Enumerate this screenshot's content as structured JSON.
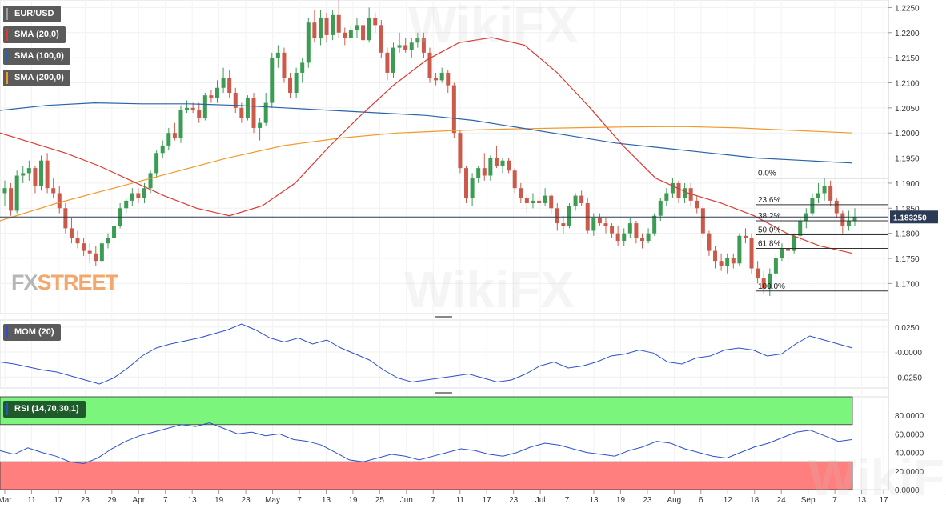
{
  "legend": {
    "symbol": "EUR/USD",
    "sma20": "SMA (20,0)",
    "sma100": "SMA (100,0)",
    "sma200": "SMA (200,0)",
    "mom": "MOM (20)",
    "rsi": "RSI (14,70,30,1)"
  },
  "logo": {
    "part1": "FX",
    "part2": "STREET"
  },
  "watermark": "WikiFX",
  "colors": {
    "bull": "#3c9c54",
    "bear": "#cc5a4a",
    "sma20": "#d93b33",
    "sma100": "#2a64a8",
    "sma200": "#f09a2a",
    "mom": "#2e4fc9",
    "rsi": "#2e4fc9",
    "rsi_overbought_zone": "#7bf57b",
    "rsi_oversold_zone": "#ff7f7f",
    "price_line": "#2b3a55",
    "price_badge": "#2b3a55"
  },
  "current_price": "1.183250",
  "chart_data": {
    "type": "candlestick",
    "price_axis": {
      "ylim": [
        1.164,
        1.2265
      ],
      "ticks": [
        "1.2250",
        "1.2200",
        "1.2150",
        "1.2100",
        "1.2050",
        "1.2000",
        "1.1950",
        "1.1900",
        "1.1850",
        "1.1800",
        "1.1750",
        "1.1700"
      ]
    },
    "x_ticks": [
      "Mar",
      "11",
      "17",
      "23",
      "29",
      "Apr",
      "7",
      "13",
      "19",
      "23",
      "May",
      "7",
      "13",
      "19",
      "25",
      "Jun",
      "7",
      "11",
      "17",
      "23",
      "Jul",
      "7",
      "13",
      "19",
      "23",
      "Aug",
      "6",
      "12",
      "18",
      "24",
      "Sep",
      "7",
      "13",
      "17"
    ],
    "candles_ohlc": [
      [
        1.188,
        1.1905,
        1.1855,
        1.189
      ],
      [
        1.189,
        1.19,
        1.1835,
        1.1845
      ],
      [
        1.1845,
        1.1925,
        1.184,
        1.1915
      ],
      [
        1.1915,
        1.1935,
        1.19,
        1.192
      ],
      [
        1.192,
        1.1945,
        1.1905,
        1.193
      ],
      [
        1.193,
        1.1935,
        1.188,
        1.1895
      ],
      [
        1.1895,
        1.1955,
        1.1885,
        1.1945
      ],
      [
        1.1945,
        1.196,
        1.188,
        1.189
      ],
      [
        1.189,
        1.191,
        1.187,
        1.188
      ],
      [
        1.188,
        1.1895,
        1.184,
        1.185
      ],
      [
        1.185,
        1.186,
        1.18,
        1.181
      ],
      [
        1.181,
        1.183,
        1.178,
        1.179
      ],
      [
        1.179,
        1.1805,
        1.177,
        1.178
      ],
      [
        1.178,
        1.179,
        1.1755,
        1.1765
      ],
      [
        1.1765,
        1.178,
        1.174,
        1.176
      ],
      [
        1.176,
        1.1775,
        1.1735,
        1.1745
      ],
      [
        1.1745,
        1.1785,
        1.174,
        1.178
      ],
      [
        1.178,
        1.18,
        1.177,
        1.179
      ],
      [
        1.179,
        1.182,
        1.178,
        1.1815
      ],
      [
        1.1815,
        1.186,
        1.181,
        1.185
      ],
      [
        1.185,
        1.187,
        1.184,
        1.1865
      ],
      [
        1.1865,
        1.189,
        1.1855,
        1.188
      ],
      [
        1.188,
        1.189,
        1.186,
        1.187
      ],
      [
        1.187,
        1.19,
        1.186,
        1.189
      ],
      [
        1.189,
        1.1925,
        1.188,
        1.192
      ],
      [
        1.192,
        1.1965,
        1.191,
        1.196
      ],
      [
        1.196,
        1.1985,
        1.195,
        1.1975
      ],
      [
        1.1975,
        1.201,
        1.1965,
        1.2
      ],
      [
        1.2,
        1.202,
        1.1985,
        1.199
      ],
      [
        1.199,
        1.2055,
        1.198,
        1.2045
      ],
      [
        1.2045,
        1.2065,
        1.204,
        1.205
      ],
      [
        1.205,
        1.206,
        1.204,
        1.2045
      ],
      [
        1.2045,
        1.206,
        1.202,
        1.203
      ],
      [
        1.203,
        1.208,
        1.2025,
        1.2075
      ],
      [
        1.2075,
        1.2085,
        1.206,
        1.207
      ],
      [
        1.207,
        1.2105,
        1.206,
        1.209
      ],
      [
        1.209,
        1.213,
        1.208,
        1.211
      ],
      [
        1.211,
        1.2125,
        1.207,
        1.208
      ],
      [
        1.208,
        1.209,
        1.204,
        1.205
      ],
      [
        1.205,
        1.206,
        1.202,
        1.203
      ],
      [
        1.203,
        1.2075,
        1.2025,
        1.207
      ],
      [
        1.207,
        1.208,
        1.2,
        1.201
      ],
      [
        1.201,
        1.203,
        1.1985,
        1.202
      ],
      [
        1.202,
        1.208,
        1.2015,
        1.206
      ],
      [
        1.206,
        1.216,
        1.205,
        1.215
      ],
      [
        1.215,
        1.2175,
        1.213,
        1.216
      ],
      [
        1.216,
        1.217,
        1.21,
        1.211
      ],
      [
        1.211,
        1.212,
        1.207,
        1.208
      ],
      [
        1.208,
        1.213,
        1.207,
        1.212
      ],
      [
        1.212,
        1.215,
        1.21,
        1.214
      ],
      [
        1.214,
        1.223,
        1.213,
        1.222
      ],
      [
        1.222,
        1.2245,
        1.218,
        1.219
      ],
      [
        1.219,
        1.2245,
        1.2175,
        1.223
      ],
      [
        1.223,
        1.224,
        1.218,
        1.2195
      ],
      [
        1.2195,
        1.2245,
        1.2185,
        1.2235
      ],
      [
        1.2235,
        1.2265,
        1.219,
        1.22
      ],
      [
        1.22,
        1.221,
        1.2175,
        1.219
      ],
      [
        1.219,
        1.2215,
        1.218,
        1.2205
      ],
      [
        1.2205,
        1.223,
        1.219,
        1.2215
      ],
      [
        1.2215,
        1.2225,
        1.217,
        1.2185
      ],
      [
        1.2185,
        1.225,
        1.218,
        1.223
      ],
      [
        1.223,
        1.224,
        1.22,
        1.2215
      ],
      [
        1.2215,
        1.2225,
        1.215,
        1.216
      ],
      [
        1.216,
        1.217,
        1.2105,
        1.212
      ],
      [
        1.212,
        1.218,
        1.211,
        1.217
      ],
      [
        1.217,
        1.22,
        1.216,
        1.2175
      ],
      [
        1.2175,
        1.219,
        1.216,
        1.2165
      ],
      [
        1.2165,
        1.219,
        1.215,
        1.218
      ],
      [
        1.218,
        1.22,
        1.217,
        1.219
      ],
      [
        1.219,
        1.22,
        1.215,
        1.216
      ],
      [
        1.216,
        1.217,
        1.21,
        1.211
      ],
      [
        1.211,
        1.212,
        1.2095,
        1.2105
      ],
      [
        1.2105,
        1.213,
        1.21,
        1.212
      ],
      [
        1.212,
        1.2125,
        1.208,
        1.2095
      ],
      [
        1.2095,
        1.21,
        1.199,
        1.2
      ],
      [
        1.2,
        1.2005,
        1.192,
        1.193
      ],
      [
        1.193,
        1.1935,
        1.186,
        1.187
      ],
      [
        1.187,
        1.192,
        1.1855,
        1.191
      ],
      [
        1.191,
        1.1935,
        1.19,
        1.193
      ],
      [
        1.193,
        1.196,
        1.1905,
        1.1915
      ],
      [
        1.1915,
        1.1955,
        1.1905,
        1.195
      ],
      [
        1.195,
        1.1975,
        1.193,
        1.1935
      ],
      [
        1.1935,
        1.195,
        1.192,
        1.1945
      ],
      [
        1.1945,
        1.195,
        1.192,
        1.1925
      ],
      [
        1.1925,
        1.193,
        1.188,
        1.189
      ],
      [
        1.189,
        1.19,
        1.186,
        1.187
      ],
      [
        1.187,
        1.188,
        1.184,
        1.186
      ],
      [
        1.186,
        1.188,
        1.185,
        1.1865
      ],
      [
        1.1865,
        1.1885,
        1.185,
        1.186
      ],
      [
        1.186,
        1.189,
        1.1855,
        1.1875
      ],
      [
        1.1875,
        1.188,
        1.184,
        1.185
      ],
      [
        1.185,
        1.186,
        1.1805,
        1.182
      ],
      [
        1.182,
        1.1835,
        1.18,
        1.1815
      ],
      [
        1.1815,
        1.186,
        1.181,
        1.1855
      ],
      [
        1.1855,
        1.188,
        1.1845,
        1.1875
      ],
      [
        1.1875,
        1.1885,
        1.1855,
        1.186
      ],
      [
        1.186,
        1.187,
        1.18,
        1.1805
      ],
      [
        1.1805,
        1.184,
        1.1795,
        1.183
      ],
      [
        1.183,
        1.184,
        1.1815,
        1.182
      ],
      [
        1.182,
        1.183,
        1.18,
        1.1815
      ],
      [
        1.1815,
        1.182,
        1.179,
        1.18
      ],
      [
        1.18,
        1.1815,
        1.1775,
        1.1785
      ],
      [
        1.1785,
        1.181,
        1.1775,
        1.18
      ],
      [
        1.18,
        1.183,
        1.179,
        1.182
      ],
      [
        1.182,
        1.1825,
        1.178,
        1.179
      ],
      [
        1.179,
        1.18,
        1.177,
        1.1785
      ],
      [
        1.1785,
        1.181,
        1.178,
        1.18
      ],
      [
        1.18,
        1.184,
        1.1795,
        1.1835
      ],
      [
        1.1835,
        1.187,
        1.1825,
        1.1865
      ],
      [
        1.1865,
        1.189,
        1.1855,
        1.188
      ],
      [
        1.188,
        1.191,
        1.187,
        1.19
      ],
      [
        1.19,
        1.1905,
        1.186,
        1.187
      ],
      [
        1.187,
        1.19,
        1.186,
        1.189
      ],
      [
        1.189,
        1.19,
        1.1855,
        1.1865
      ],
      [
        1.1865,
        1.1875,
        1.184,
        1.185
      ],
      [
        1.185,
        1.1855,
        1.179,
        1.18
      ],
      [
        1.18,
        1.1805,
        1.1755,
        1.1765
      ],
      [
        1.1765,
        1.1775,
        1.173,
        1.1745
      ],
      [
        1.1745,
        1.176,
        1.1725,
        1.1735
      ],
      [
        1.1735,
        1.176,
        1.172,
        1.175
      ],
      [
        1.175,
        1.176,
        1.173,
        1.174
      ],
      [
        1.174,
        1.18,
        1.1735,
        1.1795
      ],
      [
        1.1795,
        1.181,
        1.178,
        1.179
      ],
      [
        1.179,
        1.18,
        1.172,
        1.173
      ],
      [
        1.173,
        1.1745,
        1.17,
        1.171
      ],
      [
        1.171,
        1.1725,
        1.168,
        1.169
      ],
      [
        1.169,
        1.173,
        1.1675,
        1.172
      ],
      [
        1.172,
        1.176,
        1.171,
        1.175
      ],
      [
        1.175,
        1.178,
        1.1745,
        1.177
      ],
      [
        1.177,
        1.179,
        1.1745,
        1.1765
      ],
      [
        1.1765,
        1.18,
        1.176,
        1.1795
      ],
      [
        1.1795,
        1.183,
        1.1785,
        1.1825
      ],
      [
        1.1825,
        1.185,
        1.181,
        1.184
      ],
      [
        1.184,
        1.188,
        1.1835,
        1.187
      ],
      [
        1.187,
        1.19,
        1.186,
        1.188
      ],
      [
        1.188,
        1.191,
        1.1865,
        1.1895
      ],
      [
        1.1895,
        1.1905,
        1.1855,
        1.1865
      ],
      [
        1.1865,
        1.187,
        1.183,
        1.184
      ],
      [
        1.184,
        1.1845,
        1.18,
        1.1815
      ],
      [
        1.1815,
        1.1845,
        1.1805,
        1.1825
      ],
      [
        1.1825,
        1.185,
        1.1815,
        1.18325
      ]
    ],
    "sma20": [
      1.2,
      1.198,
      1.196,
      1.1935,
      1.1905,
      1.1875,
      1.185,
      1.1835,
      1.1855,
      1.19,
      1.197,
      1.2035,
      1.2095,
      1.2145,
      1.218,
      1.219,
      1.2175,
      1.212,
      1.205,
      1.1975,
      1.191,
      1.188,
      1.186,
      1.1835,
      1.18,
      1.1775,
      1.176
    ],
    "sma100": [
      1.2045,
      1.2055,
      1.206,
      1.2058,
      1.2058,
      1.2055,
      1.205,
      1.2045,
      1.204,
      1.2035,
      1.2025,
      1.201,
      1.1995,
      1.198,
      1.197,
      1.196,
      1.195,
      1.1945,
      1.194
    ],
    "sma200": [
      1.1825,
      1.186,
      1.189,
      1.192,
      1.195,
      1.1975,
      1.199,
      1.2,
      1.2005,
      1.2008,
      1.201,
      1.2012,
      1.2013,
      1.201,
      1.2005,
      1.2
    ],
    "fibonacci": {
      "levels": [
        {
          "label": "0.0%",
          "price": 1.191
        },
        {
          "label": "23.6%",
          "price": 1.1857
        },
        {
          "label": "38.2%",
          "price": 1.1825
        },
        {
          "label": "50.0%",
          "price": 1.1797
        },
        {
          "label": "61.8%",
          "price": 1.177
        },
        {
          "label": "100.0%",
          "price": 1.1685
        }
      ]
    },
    "mom": {
      "ticks": [
        "0.0250",
        "-0.0000",
        "-0.0250"
      ],
      "ylim": [
        -0.036,
        0.032
      ],
      "values": [
        -0.01,
        -0.012,
        -0.015,
        -0.018,
        -0.02,
        -0.024,
        -0.028,
        -0.032,
        -0.026,
        -0.016,
        -0.004,
        0.004,
        0.008,
        0.011,
        0.014,
        0.018,
        0.022,
        0.028,
        0.022,
        0.014,
        0.01,
        0.014,
        0.008,
        0.012,
        0.004,
        -0.002,
        -0.008,
        -0.018,
        -0.026,
        -0.03,
        -0.028,
        -0.026,
        -0.024,
        -0.022,
        -0.026,
        -0.03,
        -0.028,
        -0.022,
        -0.014,
        -0.01,
        -0.016,
        -0.014,
        -0.01,
        -0.004,
        -0.002,
        0.002,
        -0.001,
        -0.01,
        -0.012,
        -0.006,
        -0.004,
        0.002,
        0.004,
        0.002,
        -0.004,
        -0.002,
        0.008,
        0.016,
        0.012,
        0.008,
        0.004
      ]
    },
    "rsi": {
      "ticks": [
        "80.0000",
        "60.0000",
        "40.0000",
        "20.0000",
        "0.0000"
      ],
      "ylim": [
        0,
        100
      ],
      "overbought": 70,
      "oversold": 30,
      "values": [
        42,
        38,
        45,
        40,
        36,
        30,
        28,
        34,
        44,
        52,
        58,
        62,
        66,
        70,
        68,
        72,
        66,
        60,
        62,
        58,
        60,
        54,
        52,
        48,
        40,
        32,
        30,
        34,
        38,
        36,
        32,
        36,
        40,
        44,
        42,
        38,
        36,
        40,
        46,
        50,
        48,
        44,
        40,
        38,
        36,
        42,
        46,
        52,
        50,
        44,
        40,
        36,
        34,
        40,
        46,
        50,
        56,
        62,
        64,
        58,
        52,
        54
      ]
    }
  }
}
